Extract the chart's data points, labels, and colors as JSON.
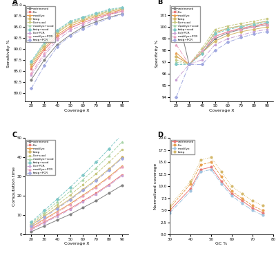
{
  "legend_labels": [
    "untrimmed",
    "lilo",
    "maxlilyo",
    "fastp",
    "lilo+scod",
    "maxlilyo+scod",
    "fastp+scod",
    "lilo+PCR",
    "maxlilyo+PCR",
    "fastp+PCR"
  ],
  "colors": [
    "#808080",
    "#E87878",
    "#E8A050",
    "#D4B86A",
    "#C8C880",
    "#A8D4A8",
    "#80C8C8",
    "#C8A0D4",
    "#E8A0C0",
    "#A0A8E0"
  ],
  "linestyles": [
    "-",
    "-",
    "-",
    "-",
    "--",
    "--",
    "--",
    "-.",
    "-.",
    "-."
  ],
  "markers": [
    "o",
    "s",
    "^",
    "D",
    "s",
    "^",
    "D",
    "s",
    "^",
    "D"
  ],
  "marker_size": 2.0,
  "line_width": 0.7,
  "coverage_x": [
    20,
    30,
    40,
    50,
    60,
    70,
    80,
    90
  ],
  "panel_A": {
    "title": "A",
    "xlabel": "Coverage X",
    "ylabel": "Sensitivity %",
    "xlim": [
      15,
      95
    ],
    "ylim_bottom": 78,
    "ylim_top": 100,
    "data": [
      [
        83.0,
        87.5,
        91.0,
        93.2,
        95.0,
        96.2,
        97.2,
        98.0
      ],
      [
        85.5,
        89.8,
        92.8,
        94.8,
        96.0,
        97.0,
        97.9,
        98.6
      ],
      [
        86.0,
        90.2,
        93.2,
        95.2,
        96.4,
        97.4,
        98.2,
        98.9
      ],
      [
        86.5,
        90.7,
        93.7,
        95.7,
        96.7,
        97.7,
        98.5,
        99.1
      ],
      [
        86.8,
        91.0,
        93.9,
        95.9,
        97.0,
        97.9,
        98.7,
        99.3
      ],
      [
        87.0,
        91.2,
        94.1,
        96.1,
        97.1,
        98.0,
        98.8,
        99.4
      ],
      [
        87.2,
        91.5,
        94.3,
        96.3,
        97.3,
        98.2,
        99.0,
        99.5
      ],
      [
        84.0,
        88.5,
        92.0,
        94.2,
        95.5,
        96.7,
        97.7,
        98.5
      ],
      [
        84.5,
        89.0,
        92.5,
        94.7,
        96.0,
        97.1,
        98.0,
        98.8
      ],
      [
        81.0,
        86.2,
        90.5,
        93.0,
        94.5,
        95.8,
        97.0,
        97.9
      ]
    ]
  },
  "panel_B": {
    "title": "B",
    "xlabel": "Coverage X",
    "ylabel": "Specificity %",
    "xlim": [
      15,
      95
    ],
    "data": [
      [
        101.5,
        96.8,
        97.8,
        99.0,
        99.5,
        99.8,
        100.0,
        100.2
      ],
      [
        97.5,
        96.8,
        97.8,
        99.2,
        99.6,
        99.9,
        100.1,
        100.3
      ],
      [
        97.8,
        96.8,
        98.0,
        99.5,
        99.9,
        100.1,
        100.3,
        100.5
      ],
      [
        97.5,
        96.8,
        97.8,
        98.8,
        99.3,
        99.6,
        99.8,
        100.0
      ],
      [
        97.2,
        96.8,
        98.2,
        99.8,
        100.1,
        100.3,
        100.5,
        100.7
      ],
      [
        97.0,
        96.8,
        98.0,
        99.6,
        99.9,
        100.1,
        100.3,
        100.5
      ],
      [
        96.8,
        96.8,
        97.7,
        99.4,
        99.8,
        100.0,
        100.2,
        100.4
      ],
      [
        95.5,
        96.8,
        97.2,
        98.5,
        99.0,
        99.3,
        99.6,
        99.8
      ],
      [
        98.5,
        96.8,
        98.0,
        99.2,
        99.6,
        99.8,
        100.0,
        100.2
      ],
      [
        94.0,
        96.8,
        96.8,
        98.0,
        98.7,
        99.1,
        99.4,
        99.6
      ]
    ]
  },
  "panel_C": {
    "title": "C",
    "xlabel": "Coverage X",
    "ylabel": "Computation time",
    "xlim": [
      15,
      95
    ],
    "ylim_bottom": 0,
    "ylim_top": 50,
    "data": [
      [
        1.5,
        4.5,
        7.5,
        10.5,
        14.0,
        17.5,
        21.5,
        25.5
      ],
      [
        3.0,
        6.5,
        10.0,
        13.5,
        17.5,
        21.5,
        26.0,
        31.0
      ],
      [
        4.0,
        8.0,
        12.0,
        16.0,
        20.5,
        25.0,
        30.0,
        35.5
      ],
      [
        5.0,
        9.5,
        14.0,
        18.5,
        23.5,
        28.5,
        34.0,
        40.0
      ],
      [
        5.5,
        10.5,
        15.5,
        20.5,
        26.0,
        31.5,
        37.5,
        44.0
      ],
      [
        6.0,
        11.5,
        17.0,
        22.5,
        28.5,
        34.5,
        41.0,
        48.0
      ],
      [
        6.5,
        12.5,
        18.5,
        24.5,
        31.0,
        37.5,
        44.5,
        52.0
      ],
      [
        2.5,
        6.0,
        9.5,
        13.0,
        17.0,
        21.0,
        25.5,
        30.5
      ],
      [
        3.5,
        7.5,
        11.5,
        15.5,
        20.0,
        24.5,
        29.5,
        35.0
      ],
      [
        4.5,
        9.0,
        13.5,
        18.0,
        23.0,
        28.0,
        33.5,
        39.5
      ]
    ]
  },
  "panel_D": {
    "title": "D",
    "xlabel": "GC %",
    "ylabel": "Normalized coverage",
    "xlim": [
      30,
      80
    ],
    "ylim_bottom": 0,
    "ylim_top": 20,
    "xticks": [
      30,
      40,
      50,
      60,
      70,
      80
    ],
    "gc_x": [
      30,
      40,
      45,
      50,
      55,
      60,
      65,
      70,
      75
    ],
    "data": [
      [
        5.0,
        9.5,
        13.5,
        14.0,
        11.0,
        8.5,
        7.0,
        5.5,
        4.5
      ],
      [
        5.5,
        10.5,
        14.5,
        15.0,
        12.0,
        9.0,
        7.5,
        6.0,
        5.0
      ],
      [
        4.5,
        9.0,
        13.0,
        13.5,
        10.5,
        8.0,
        6.5,
        5.0,
        4.0
      ],
      [
        6.0,
        11.0,
        15.5,
        16.0,
        13.0,
        10.0,
        8.5,
        7.0,
        6.0
      ]
    ],
    "d_labels": [
      "untrimmed",
      "lilo",
      "maxlilyo",
      "fastp"
    ],
    "d_colors": [
      "#E87878",
      "#E8A050",
      "#A0C4E0",
      "#D4B86A"
    ],
    "d_linestyles": [
      "-",
      "--",
      "-.",
      ":"
    ]
  }
}
